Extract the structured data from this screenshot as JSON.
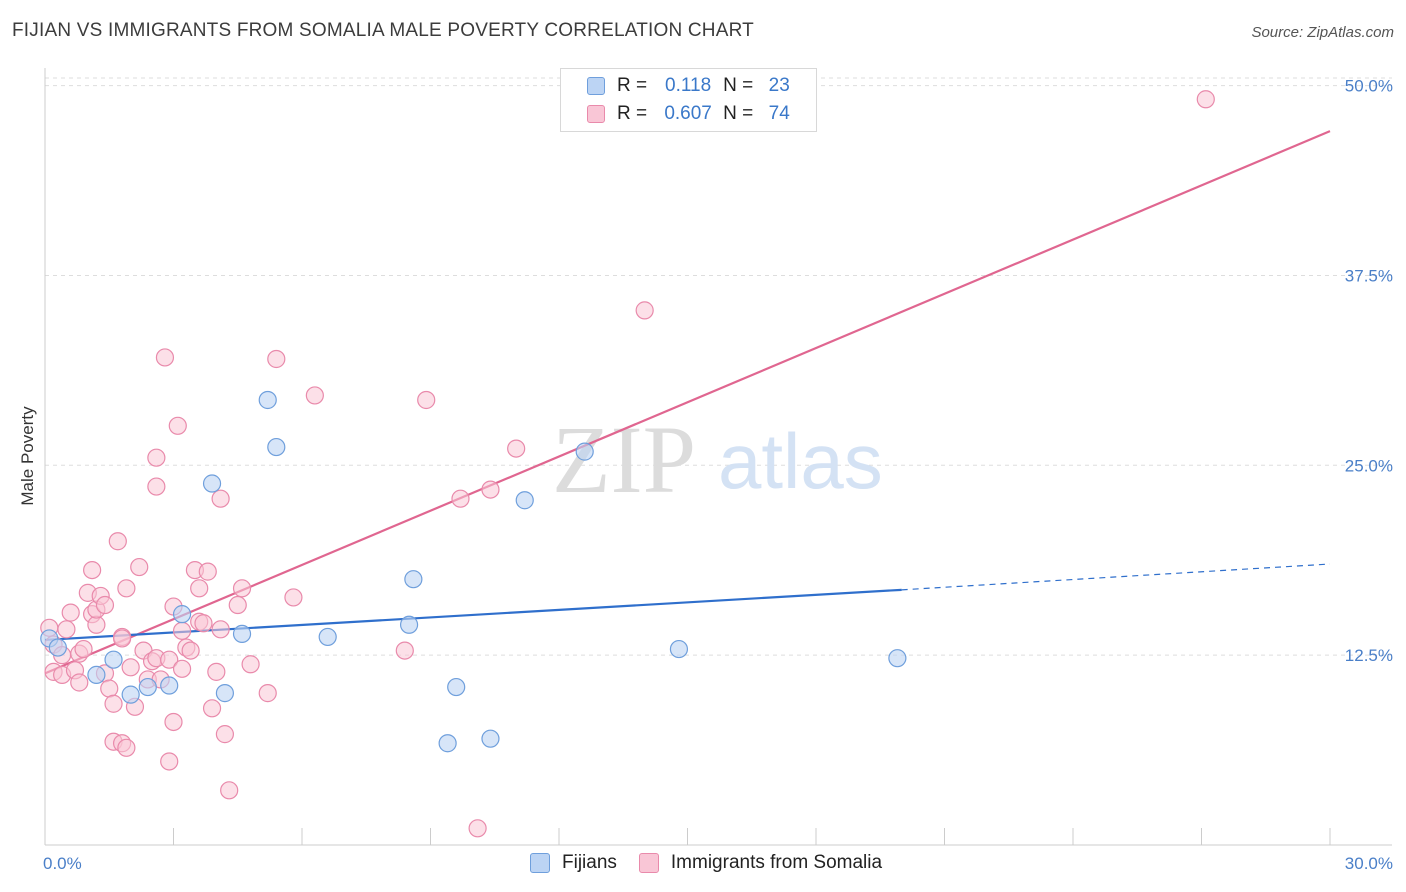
{
  "title": "FIJIAN VS IMMIGRANTS FROM SOMALIA MALE POVERTY CORRELATION CHART",
  "source": "Source: ZipAtlas.com",
  "watermark": {
    "zip": "ZIP",
    "atlas": "atlas"
  },
  "legend": {
    "r_label": "R =",
    "n_label": "N =",
    "rows": [
      {
        "name": "Fijians",
        "r": "0.118",
        "n": "23"
      },
      {
        "name": "Immigrants from Somalia",
        "r": "0.607",
        "n": "74"
      }
    ]
  },
  "colors": {
    "fijians_fill": "#bcd4f4",
    "fijians_stroke": "#6f9fdc",
    "fijians_line": "#2f6fcc",
    "somalia_fill": "#f9c6d6",
    "somalia_stroke": "#e98aab",
    "somalia_line": "#e06690",
    "tick_text": "#4a7fc8",
    "grid": "#dddddd"
  },
  "chart_data": {
    "type": "scatter",
    "title": "FIJIAN VS IMMIGRANTS FROM SOMALIA MALE POVERTY CORRELATION CHART",
    "xlabel": "",
    "ylabel": "Male Poverty",
    "xlim": [
      0,
      30
    ],
    "ylim": [
      0,
      50.5
    ],
    "x_tick_labels": [
      "0.0%",
      "30.0%"
    ],
    "y_ticks": [
      12.5,
      25.0,
      37.5,
      50.0
    ],
    "y_tick_labels": [
      "12.5%",
      "25.0%",
      "37.5%",
      "50.0%"
    ],
    "series": [
      {
        "name": "Fijians",
        "r": 0.118,
        "n": 23,
        "points": [
          [
            0.1,
            13.6
          ],
          [
            0.3,
            13.0
          ],
          [
            1.2,
            11.2
          ],
          [
            1.6,
            12.2
          ],
          [
            2.0,
            9.9
          ],
          [
            2.4,
            10.4
          ],
          [
            2.9,
            10.5
          ],
          [
            3.2,
            15.2
          ],
          [
            3.9,
            23.8
          ],
          [
            4.2,
            10.0
          ],
          [
            4.6,
            13.9
          ],
          [
            5.2,
            29.3
          ],
          [
            5.4,
            26.2
          ],
          [
            6.6,
            13.7
          ],
          [
            8.6,
            17.5
          ],
          [
            8.5,
            14.5
          ],
          [
            9.4,
            6.7
          ],
          [
            9.6,
            10.4
          ],
          [
            10.4,
            7.0
          ],
          [
            11.2,
            22.7
          ],
          [
            12.6,
            25.9
          ],
          [
            14.8,
            12.9
          ],
          [
            19.9,
            12.3
          ]
        ],
        "trend": {
          "x0": 0.0,
          "y0": 13.5,
          "x1": 20.0,
          "y1": 16.8,
          "dashed_to_x": 30.0,
          "dashed_to_y": 18.5
        }
      },
      {
        "name": "Immigrants from Somalia",
        "r": 0.607,
        "n": 74,
        "points": [
          [
            0.1,
            14.3
          ],
          [
            0.2,
            13.2
          ],
          [
            0.2,
            11.4
          ],
          [
            0.4,
            12.5
          ],
          [
            0.4,
            11.2
          ],
          [
            0.5,
            14.2
          ],
          [
            0.6,
            15.3
          ],
          [
            0.7,
            11.5
          ],
          [
            0.8,
            12.6
          ],
          [
            0.8,
            10.7
          ],
          [
            0.9,
            12.9
          ],
          [
            1.0,
            16.6
          ],
          [
            1.1,
            15.2
          ],
          [
            1.1,
            18.1
          ],
          [
            1.2,
            14.5
          ],
          [
            1.2,
            15.5
          ],
          [
            1.3,
            16.4
          ],
          [
            1.4,
            11.3
          ],
          [
            1.4,
            15.8
          ],
          [
            1.5,
            10.3
          ],
          [
            1.6,
            6.8
          ],
          [
            1.6,
            9.3
          ],
          [
            1.7,
            20.0
          ],
          [
            1.8,
            13.7
          ],
          [
            1.8,
            6.7
          ],
          [
            1.9,
            6.4
          ],
          [
            1.9,
            16.9
          ],
          [
            2.0,
            11.7
          ],
          [
            2.1,
            9.1
          ],
          [
            2.2,
            18.3
          ],
          [
            2.3,
            12.8
          ],
          [
            2.4,
            10.9
          ],
          [
            2.5,
            12.1
          ],
          [
            2.6,
            25.5
          ],
          [
            2.6,
            12.3
          ],
          [
            2.7,
            10.9
          ],
          [
            2.8,
            32.1
          ],
          [
            2.9,
            12.2
          ],
          [
            2.9,
            5.5
          ],
          [
            3.0,
            8.1
          ],
          [
            3.0,
            15.7
          ],
          [
            3.1,
            27.6
          ],
          [
            3.2,
            14.1
          ],
          [
            3.2,
            11.6
          ],
          [
            3.3,
            13.0
          ],
          [
            3.4,
            12.8
          ],
          [
            3.5,
            18.1
          ],
          [
            3.6,
            16.9
          ],
          [
            3.6,
            14.7
          ],
          [
            3.7,
            14.6
          ],
          [
            3.8,
            18.0
          ],
          [
            3.9,
            9.0
          ],
          [
            4.0,
            11.4
          ],
          [
            4.1,
            22.8
          ],
          [
            4.1,
            14.2
          ],
          [
            4.2,
            7.3
          ],
          [
            4.3,
            3.6
          ],
          [
            4.5,
            15.8
          ],
          [
            4.6,
            16.9
          ],
          [
            4.8,
            11.9
          ],
          [
            5.2,
            10.0
          ],
          [
            5.4,
            32.0
          ],
          [
            5.8,
            16.3
          ],
          [
            6.3,
            29.6
          ],
          [
            8.4,
            12.8
          ],
          [
            8.9,
            29.3
          ],
          [
            9.7,
            22.8
          ],
          [
            10.1,
            1.1
          ],
          [
            10.4,
            23.4
          ],
          [
            11.0,
            26.1
          ],
          [
            14.0,
            35.2
          ],
          [
            27.1,
            49.1
          ],
          [
            2.6,
            23.6
          ],
          [
            1.8,
            13.6
          ]
        ],
        "trend": {
          "x0": 0.0,
          "y0": 11.3,
          "x1": 30.0,
          "y1": 47.0
        }
      }
    ]
  }
}
